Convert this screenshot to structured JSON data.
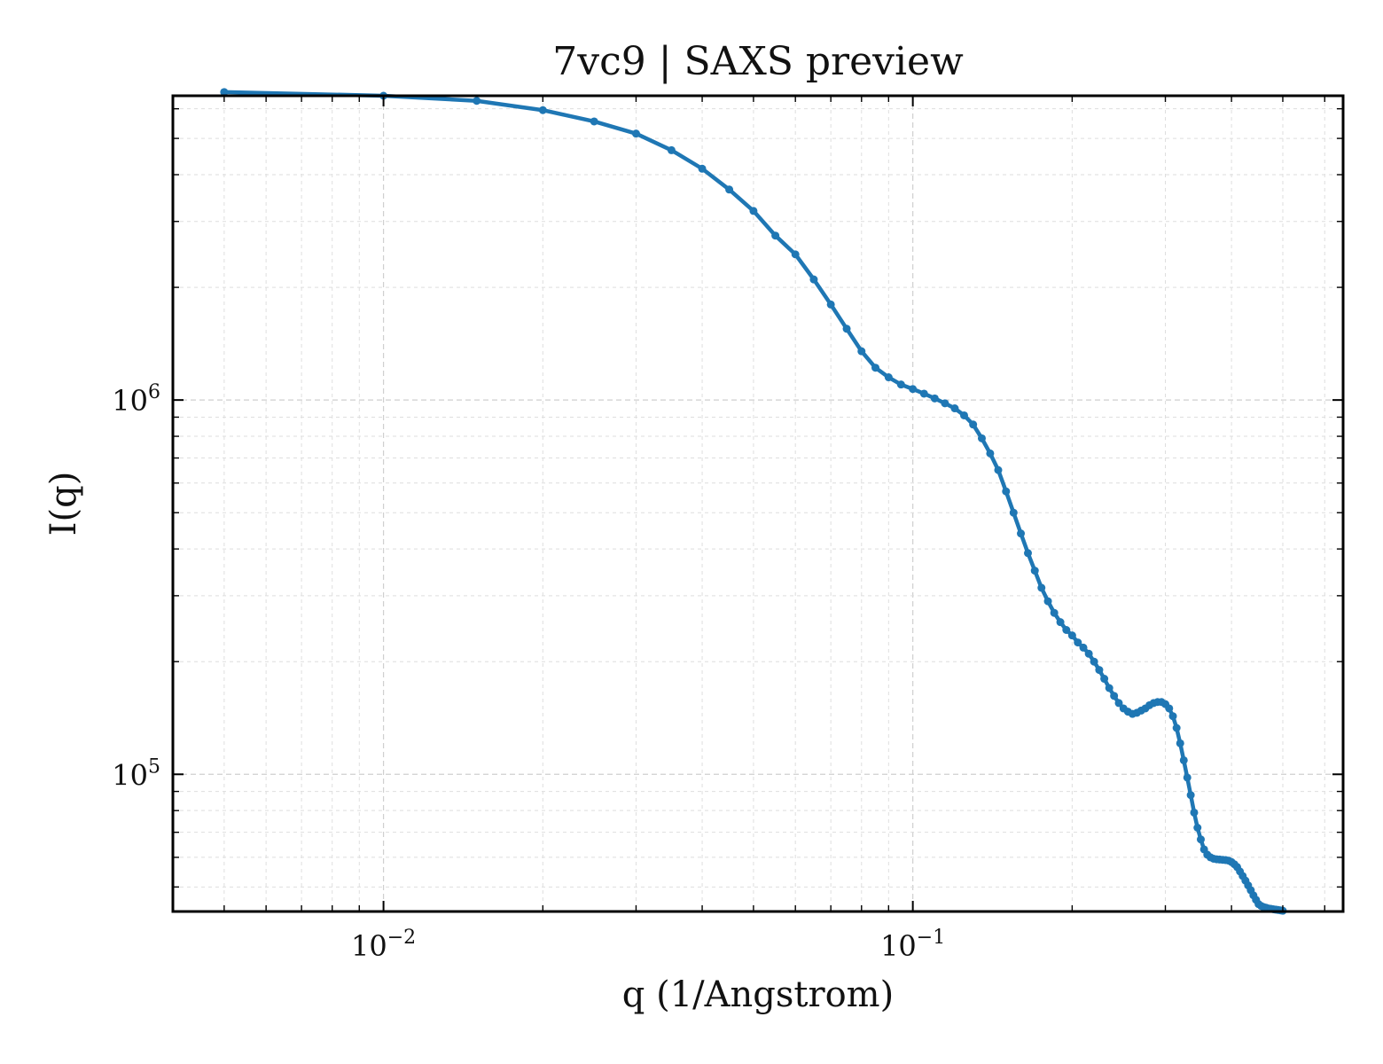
{
  "chart_data": {
    "type": "line",
    "title": "7vc9 | SAXS preview",
    "xlabel": "q (1/Angstrom)",
    "ylabel": "I(q)",
    "xscale": "log",
    "yscale": "log",
    "xlim": [
      0.004,
      0.65
    ],
    "ylim": [
      43000,
      6500000
    ],
    "grid": true,
    "x_ticks": [
      {
        "value": 0.01,
        "base": "10",
        "exp": "−2"
      },
      {
        "value": 0.1,
        "base": "10",
        "exp": "−1"
      }
    ],
    "y_ticks": [
      {
        "value": 100000,
        "base": "10",
        "exp": "5"
      },
      {
        "value": 1000000,
        "base": "10",
        "exp": "6"
      }
    ],
    "series": [
      {
        "color": "#1f77b4",
        "marker": "circle",
        "x": [
          0.005,
          0.01,
          0.015,
          0.02,
          0.025,
          0.03,
          0.035,
          0.04,
          0.045,
          0.05,
          0.055,
          0.06,
          0.065,
          0.07,
          0.075,
          0.08,
          0.085,
          0.09,
          0.095,
          0.1,
          0.105,
          0.11,
          0.115,
          0.12,
          0.125,
          0.13,
          0.135,
          0.14,
          0.145,
          0.15,
          0.155,
          0.16,
          0.165,
          0.17,
          0.175,
          0.18,
          0.185,
          0.19,
          0.195,
          0.2,
          0.205,
          0.21,
          0.215,
          0.22,
          0.225,
          0.23,
          0.235,
          0.24,
          0.245,
          0.25,
          0.255,
          0.26,
          0.265,
          0.27,
          0.275,
          0.28,
          0.285,
          0.29,
          0.295,
          0.3,
          0.305,
          0.31,
          0.315,
          0.32,
          0.325,
          0.33,
          0.335,
          0.34,
          0.345,
          0.35,
          0.355,
          0.36,
          0.365,
          0.37,
          0.375,
          0.38,
          0.385,
          0.39,
          0.395,
          0.4,
          0.405,
          0.41,
          0.415,
          0.42,
          0.425,
          0.43,
          0.435,
          0.44,
          0.445,
          0.45,
          0.455,
          0.46,
          0.465,
          0.47,
          0.475,
          0.48,
          0.485,
          0.49,
          0.495,
          0.5
        ],
        "y": [
          6650000,
          6500000,
          6300000,
          5950000,
          5550000,
          5150000,
          4650000,
          4150000,
          3650000,
          3200000,
          2750000,
          2450000,
          2100000,
          1800000,
          1550000,
          1350000,
          1220000,
          1150000,
          1100000,
          1070000,
          1040000,
          1010000,
          980000,
          950000,
          910000,
          860000,
          790000,
          720000,
          650000,
          570000,
          500000,
          440000,
          390000,
          350000,
          315000,
          290000,
          270000,
          255000,
          243000,
          235000,
          225000,
          218000,
          210000,
          200000,
          190000,
          180000,
          170000,
          162000,
          155000,
          150000,
          147000,
          145000,
          146000,
          148000,
          150000,
          153000,
          155000,
          156000,
          156000,
          154000,
          150000,
          143000,
          133000,
          121000,
          109000,
          98000,
          88000,
          79000,
          72000,
          67000,
          63000,
          61000,
          60000,
          59500,
          59300,
          59200,
          59100,
          59000,
          58800,
          58300,
          57500,
          56500,
          55000,
          53500,
          52000,
          50500,
          49000,
          47500,
          46200,
          45000,
          44500,
          44200,
          44000,
          43800,
          43700,
          43600,
          43500,
          43400,
          43300,
          43200
        ]
      }
    ]
  }
}
